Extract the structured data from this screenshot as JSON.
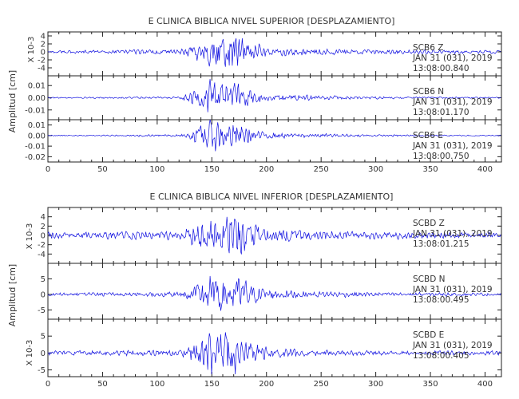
{
  "chart_data": [
    {
      "type": "line",
      "title": "E CLINICA BIBLICA NIVEL SUPERIOR [DESPLAZAMIENTO]",
      "xlabel": "",
      "ylabel": "Amplitud [cm]",
      "xlim": [
        0,
        415
      ],
      "xticks": [
        0,
        50,
        100,
        150,
        200,
        250,
        300,
        350,
        400
      ],
      "panels": [
        {
          "station": "SCB6",
          "component": "Z",
          "date": "JAN 31 (031), 2019",
          "time": "13:08:00.840",
          "ylim": [
            -6,
            5
          ],
          "yticks": [
            "4",
            "2",
            "0",
            "-2",
            "-4"
          ],
          "scale_label": "X 10-3",
          "x": [
            0,
            120,
            130,
            140,
            150,
            160,
            170,
            180,
            190,
            200,
            240,
            300,
            415
          ],
          "envelope": [
            0.4,
            0.6,
            1.5,
            3.0,
            4.5,
            4.0,
            4.5,
            3.5,
            2.5,
            1.2,
            0.8,
            0.6,
            0.4
          ]
        },
        {
          "station": "SCB6",
          "component": "N",
          "date": "JAN 31 (031), 2019",
          "time": "13:08:01.170",
          "ylim": [
            -0.018,
            0.018
          ],
          "yticks": [
            "0.01",
            "0.00",
            "-0.01"
          ],
          "scale_label": "",
          "x": [
            0,
            120,
            130,
            140,
            150,
            160,
            170,
            180,
            190,
            200,
            240,
            300,
            415
          ],
          "envelope": [
            0.0005,
            0.001,
            0.004,
            0.009,
            0.014,
            0.011,
            0.013,
            0.009,
            0.005,
            0.003,
            0.002,
            0.001,
            0.0005
          ]
        },
        {
          "station": "SCB6",
          "component": "E",
          "date": "JAN 31 (031), 2019",
          "time": "13:08:00.750",
          "ylim": [
            -0.025,
            0.015
          ],
          "yticks": [
            "0.01",
            "0.00",
            "-0.01",
            "-0.02"
          ],
          "scale_label": "",
          "x": [
            0,
            120,
            130,
            140,
            150,
            160,
            170,
            180,
            190,
            200,
            240,
            300,
            415
          ],
          "envelope": [
            0.0005,
            0.001,
            0.004,
            0.01,
            0.017,
            0.012,
            0.012,
            0.009,
            0.005,
            0.003,
            0.002,
            0.001,
            0.0005
          ]
        }
      ]
    },
    {
      "type": "line",
      "title": "E CLINICA BIBLICA NIVEL INFERIOR [DESPLAZAMIENTO]",
      "xlabel": "",
      "ylabel": "Amplitud [cm]",
      "xlim": [
        0,
        415
      ],
      "xticks": [
        0,
        50,
        100,
        150,
        200,
        250,
        300,
        350,
        400
      ],
      "panels": [
        {
          "station": "SCBD",
          "component": "Z",
          "date": "JAN 31 (031), 2019",
          "time": "13:08:01.215",
          "ylim": [
            -6,
            6
          ],
          "yticks": [
            "4",
            "2",
            "0",
            "-2",
            "-4"
          ],
          "scale_label": "X 10-3",
          "x": [
            0,
            120,
            130,
            140,
            150,
            160,
            170,
            180,
            190,
            200,
            240,
            300,
            415
          ],
          "envelope": [
            0.7,
            0.9,
            2.0,
            3.5,
            4.5,
            4.0,
            4.5,
            3.8,
            2.5,
            1.5,
            1.0,
            0.8,
            0.6
          ]
        },
        {
          "station": "SCBD",
          "component": "N",
          "date": "JAN 31 (031), 2019",
          "time": "13:08:00.495",
          "ylim": [
            -8,
            10
          ],
          "yticks": [
            "5",
            "0",
            "-5"
          ],
          "scale_label": "X 10-3",
          "x": [
            0,
            120,
            130,
            140,
            150,
            160,
            170,
            180,
            190,
            200,
            240,
            300,
            415
          ],
          "envelope": [
            0.5,
            0.8,
            2.0,
            4.0,
            7.0,
            6.0,
            7.0,
            5.0,
            3.0,
            1.8,
            1.0,
            0.7,
            0.5
          ]
        },
        {
          "station": "SCBD",
          "component": "E",
          "date": "JAN 31 (031), 2019",
          "time": "13:08:00.405",
          "ylim": [
            -7,
            10
          ],
          "yticks": [
            "5",
            "0",
            "-5"
          ],
          "scale_label": "X 10-3",
          "x": [
            0,
            120,
            130,
            140,
            150,
            160,
            170,
            180,
            190,
            200,
            240,
            300,
            415
          ],
          "envelope": [
            0.6,
            0.9,
            2.0,
            4.5,
            7.0,
            5.5,
            6.0,
            4.5,
            3.0,
            1.8,
            1.0,
            0.7,
            0.6
          ]
        }
      ]
    }
  ],
  "colors": {
    "trace": "#1010e0",
    "axes": "#222222",
    "text": "#333333"
  },
  "labels": {
    "ylabel": "Amplitud [cm]",
    "scale_label": "X 10-3"
  }
}
